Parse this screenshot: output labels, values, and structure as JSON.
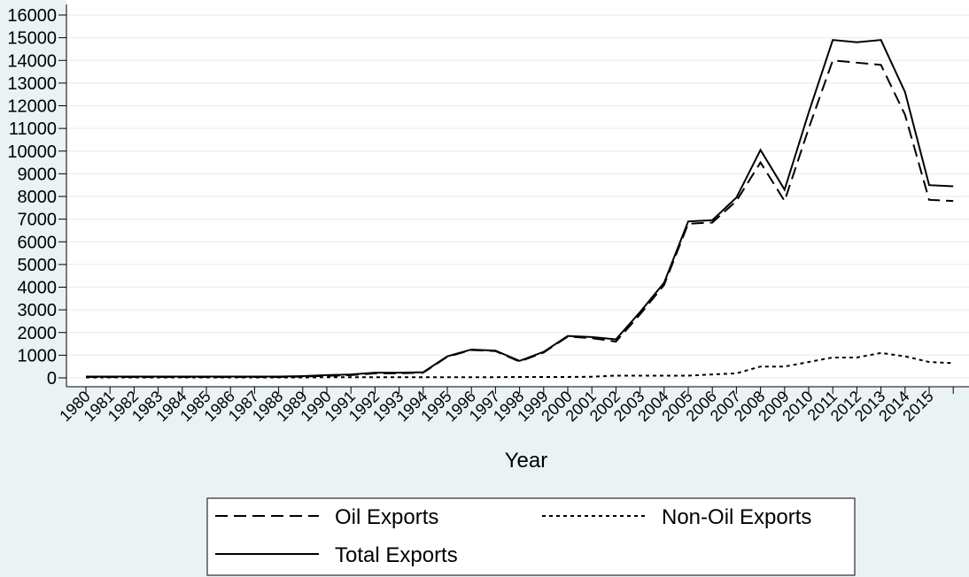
{
  "chart_data": {
    "type": "line",
    "x_label": "Year",
    "categories": [
      "1980",
      "1981",
      "1982",
      "1983",
      "1984",
      "1985",
      "1986",
      "1987",
      "1988",
      "1989",
      "1990",
      "1991",
      "1992",
      "1993",
      "1994",
      "1995",
      "1996",
      "1997",
      "1998",
      "1999",
      "2000",
      "2001",
      "2002",
      "2003",
      "2004",
      "2005",
      "2006",
      "2007",
      "2008",
      "2009",
      "2010",
      "2011",
      "2012",
      "2013",
      "2014",
      "2015",
      null
    ],
    "series": [
      {
        "name": "Oil Exports",
        "color": "#000000",
        "line_style": "dash",
        "values": [
          40,
          40,
          40,
          40,
          40,
          40,
          40,
          40,
          40,
          60,
          90,
          120,
          200,
          200,
          230,
          930,
          1230,
          1180,
          720,
          1120,
          1820,
          1750,
          1600,
          2800,
          4100,
          6800,
          6850,
          7800,
          9500,
          7800,
          11000,
          14000,
          13900,
          13800,
          11600,
          7850,
          7800
        ]
      },
      {
        "name": "Non-Oil Exports",
        "color": "#000000",
        "line_style": "dot",
        "values": [
          20,
          20,
          20,
          20,
          20,
          20,
          20,
          20,
          20,
          20,
          30,
          30,
          30,
          30,
          30,
          30,
          30,
          30,
          40,
          40,
          40,
          50,
          100,
          100,
          100,
          100,
          150,
          200,
          500,
          500,
          700,
          900,
          900,
          1100,
          950,
          700,
          650
        ]
      },
      {
        "name": "Total Exports",
        "color": "#000000",
        "line_style": "solid",
        "values": [
          60,
          60,
          60,
          60,
          60,
          60,
          60,
          60,
          60,
          80,
          120,
          150,
          230,
          230,
          250,
          950,
          1250,
          1200,
          750,
          1150,
          1850,
          1800,
          1700,
          2900,
          4200,
          6900,
          6950,
          7950,
          10050,
          8300,
          11700,
          14900,
          14800,
          14900,
          12600,
          8500,
          8450
        ]
      }
    ],
    "ylim": [
      0,
      16000
    ],
    "yticks": [
      0,
      1000,
      2000,
      3000,
      4000,
      5000,
      6000,
      7000,
      8000,
      9000,
      10000,
      11000,
      12000,
      13000,
      14000,
      15000,
      16000
    ],
    "grid": true
  }
}
